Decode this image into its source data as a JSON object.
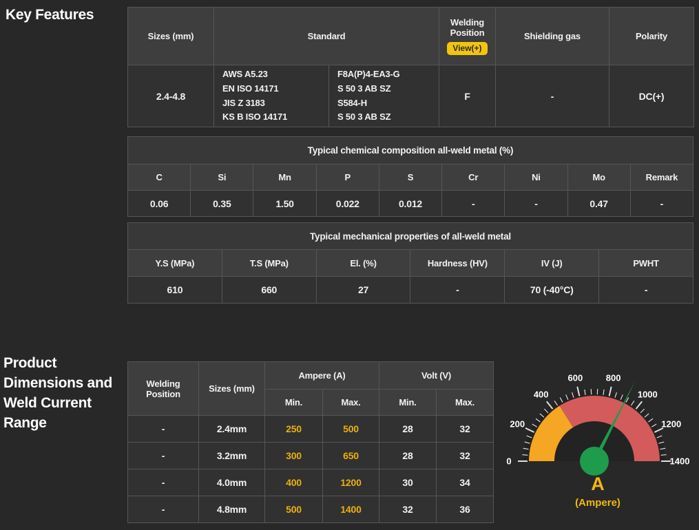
{
  "sections": {
    "key_features": "Key Features",
    "product_dimensions": "Product\nDimensions and\nWeld Current\nRange"
  },
  "key_features_table": {
    "headers": {
      "sizes": "Sizes (mm)",
      "standard": "Standard",
      "welding_position": "Welding\nPosition",
      "view_badge": "View(+)",
      "shielding_gas": "Shielding gas",
      "polarity": "Polarity"
    },
    "row": {
      "sizes": "2.4-4.8",
      "standard_specs": "AWS A5.23\nEN ISO 14171\nJIS Z 3183\nKS B ISO 14171",
      "standard_classes": "F8A(P)4-EA3-G\nS 50 3 AB SZ\nS584-H\nS 50 3 AB SZ",
      "welding_position": "F",
      "shielding_gas": "-",
      "polarity": "DC(+)"
    }
  },
  "chemical_table": {
    "title": "Typical chemical composition all-weld metal (%)",
    "headers": [
      "C",
      "Si",
      "Mn",
      "P",
      "S",
      "Cr",
      "Ni",
      "Mo",
      "Remark"
    ],
    "values": [
      "0.06",
      "0.35",
      "1.50",
      "0.022",
      "0.012",
      "-",
      "-",
      "0.47",
      "-"
    ]
  },
  "mechanical_table": {
    "title": "Typical mechanical properties of all-weld metal",
    "headers": [
      "Y.S (MPa)",
      "T.S (MPa)",
      "El. (%)",
      "Hardness (HV)",
      "IV (J)",
      "PWHT"
    ],
    "values": [
      "610",
      "660",
      "27",
      "-",
      "70 (-40°C)",
      "-"
    ]
  },
  "dimensions_table": {
    "headers": {
      "welding_position": "Welding\nPosition",
      "sizes": "Sizes (mm)",
      "ampere": "Ampere (A)",
      "volt": "Volt (V)",
      "min": "Min.",
      "max": "Max."
    },
    "rows": [
      {
        "position": "-",
        "size": "2.4mm",
        "amp_min": "250",
        "amp_max": "500",
        "volt_min": "28",
        "volt_max": "32"
      },
      {
        "position": "-",
        "size": "3.2mm",
        "amp_min": "300",
        "amp_max": "650",
        "volt_min": "28",
        "volt_max": "32"
      },
      {
        "position": "-",
        "size": "4.0mm",
        "amp_min": "400",
        "amp_max": "1200",
        "volt_min": "30",
        "volt_max": "34"
      },
      {
        "position": "-",
        "size": "4.8mm",
        "amp_min": "500",
        "amp_max": "1400",
        "volt_min": "32",
        "volt_max": "36"
      }
    ]
  },
  "chart_data": {
    "type": "gauge",
    "title": "A",
    "subtitle": "(Ampere)",
    "min": 0,
    "max": 1400,
    "major_ticks": [
      0,
      200,
      400,
      600,
      800,
      1000,
      1200,
      1400
    ],
    "minor_tick_step": 40,
    "zones": [
      {
        "from": 0,
        "to": 450,
        "color": "#f5a623"
      },
      {
        "from": 450,
        "to": 1400,
        "color": "#d45b5b"
      }
    ],
    "needle_value": 910,
    "needle_color": "#1e9c4d",
    "hub_color": "#1e9c4d",
    "tick_color": "#e0e0e0",
    "label_color": "#ffffff",
    "title_color": "#f0b90f",
    "backing_color": "#232323"
  },
  "colors": {
    "page_bg": "#282828",
    "header_cell": "#3e3e3e",
    "data_cell": "#313131",
    "border": "#565656",
    "accent_gold": "#ecb00c",
    "badge_yellow": "#f2c40e"
  }
}
